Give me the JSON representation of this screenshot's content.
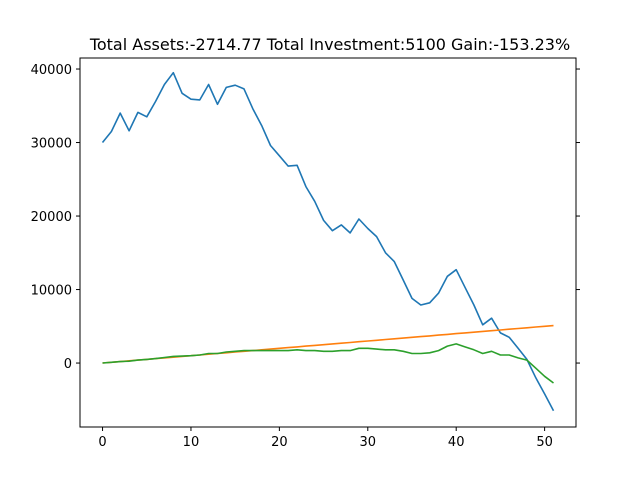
{
  "chart_data": {
    "type": "line",
    "title": "Total Assets:-2714.77  Total Investment:5100  Gain:-153.23%",
    "xlabel": "",
    "ylabel": "",
    "xlim": [
      -2.55,
      53.55
    ],
    "ylim": [
      -8700,
      41500
    ],
    "xticks": [
      0,
      10,
      20,
      30,
      40,
      50
    ],
    "yticks": [
      0,
      10000,
      20000,
      30000,
      40000
    ],
    "grid": false,
    "x": [
      0,
      1,
      2,
      3,
      4,
      5,
      6,
      7,
      8,
      9,
      10,
      11,
      12,
      13,
      14,
      15,
      16,
      17,
      18,
      19,
      20,
      21,
      22,
      23,
      24,
      25,
      26,
      27,
      28,
      29,
      30,
      31,
      32,
      33,
      34,
      35,
      36,
      37,
      38,
      39,
      40,
      41,
      42,
      43,
      44,
      45,
      46,
      47,
      48,
      49,
      50,
      51
    ],
    "series": [
      {
        "color": "#1f77b4",
        "values": [
          30000,
          31500,
          34000,
          31600,
          34100,
          33500,
          35600,
          37900,
          39500,
          36700,
          35900,
          35800,
          37900,
          35200,
          37500,
          37800,
          37300,
          34600,
          32300,
          29600,
          28200,
          26800,
          26900,
          24000,
          22000,
          19400,
          18000,
          18800,
          17700,
          19600,
          18300,
          17200,
          15000,
          13800,
          11300,
          8800,
          7900,
          8200,
          9500,
          11800,
          12700,
          10300,
          7900,
          5200,
          6100,
          4100,
          3500,
          2000,
          500,
          -2000,
          -4200,
          -6500
        ]
      },
      {
        "color": "#ff7f0e",
        "values": [
          0,
          100,
          200,
          300,
          400,
          500,
          600,
          700,
          800,
          900,
          1000,
          1100,
          1200,
          1300,
          1400,
          1500,
          1600,
          1700,
          1800,
          1900,
          2000,
          2100,
          2200,
          2300,
          2400,
          2500,
          2600,
          2700,
          2800,
          2900,
          3000,
          3100,
          3200,
          3300,
          3400,
          3500,
          3600,
          3700,
          3800,
          3900,
          4000,
          4100,
          4200,
          4300,
          4400,
          4500,
          4600,
          4700,
          4800,
          4900,
          5000,
          5100
        ]
      },
      {
        "color": "#2ca02c",
        "values": [
          0,
          100,
          200,
          250,
          400,
          500,
          600,
          750,
          900,
          950,
          1000,
          1100,
          1300,
          1300,
          1500,
          1600,
          1700,
          1700,
          1700,
          1700,
          1700,
          1700,
          1800,
          1700,
          1700,
          1600,
          1600,
          1700,
          1700,
          2000,
          2000,
          1900,
          1800,
          1800,
          1600,
          1300,
          1300,
          1400,
          1700,
          2300,
          2600,
          2200,
          1800,
          1300,
          1600,
          1100,
          1100,
          700,
          400,
          -700,
          -1800,
          -2714.77
        ]
      }
    ]
  }
}
